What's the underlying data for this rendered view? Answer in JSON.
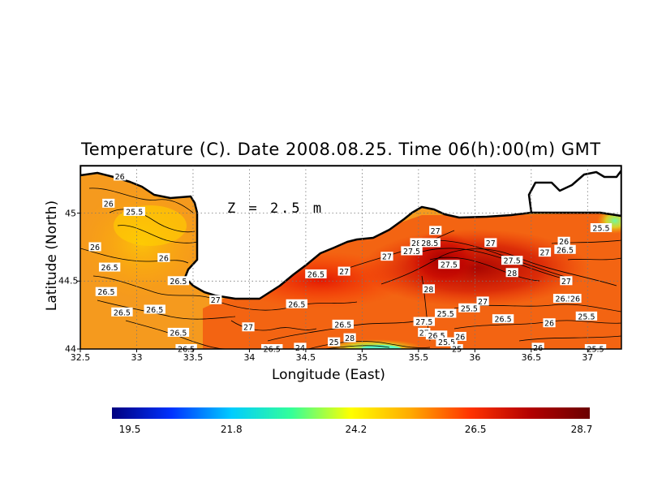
{
  "title": "Temperature (C). Date 2008.08.25. Time 06(h):00(m) GMT",
  "depth_label": "Z = 2.5 m",
  "xlabel": "Longitude (East)",
  "ylabel": "Latitude (North)",
  "x_ticks": [
    "32.5",
    "33",
    "33.5",
    "34",
    "34.5",
    "35",
    "35.5",
    "36",
    "36.5",
    "37"
  ],
  "y_ticks": [
    "44",
    "44.5",
    "45"
  ],
  "colorbar": {
    "ticks": [
      "19.5",
      "21.8",
      "24.2",
      "26.5",
      "28.7"
    ],
    "min": 19.5,
    "max": 28.7
  },
  "colors": {
    "cb_stops": [
      "#00007f",
      "#0033ff",
      "#00ccff",
      "#33ff99",
      "#ffff00",
      "#ffaa00",
      "#ff3300",
      "#b30000",
      "#6b0000"
    ],
    "land": "#ffffff",
    "coast": "#000000"
  },
  "chart_data": {
    "type": "heatmap",
    "title": "Temperature (C). Date 2008.08.25. Time 06(h):00(m) GMT",
    "xlabel": "Longitude (East)",
    "ylabel": "Latitude (North)",
    "xlim": [
      32.5,
      37.3
    ],
    "ylim": [
      44.0,
      45.35
    ],
    "colorbar_range": [
      19.5,
      28.7
    ],
    "contour_labels": [
      {
        "lon": 32.85,
        "lat": 45.27,
        "value": "26"
      },
      {
        "lon": 32.75,
        "lat": 45.07,
        "value": "26"
      },
      {
        "lon": 32.98,
        "lat": 45.01,
        "value": "25.5"
      },
      {
        "lon": 32.63,
        "lat": 44.75,
        "value": "26"
      },
      {
        "lon": 32.76,
        "lat": 44.6,
        "value": "26.5"
      },
      {
        "lon": 33.24,
        "lat": 44.67,
        "value": "26"
      },
      {
        "lon": 32.73,
        "lat": 44.42,
        "value": "26.5"
      },
      {
        "lon": 32.87,
        "lat": 44.27,
        "value": "26.5"
      },
      {
        "lon": 33.16,
        "lat": 44.29,
        "value": "26.5"
      },
      {
        "lon": 33.37,
        "lat": 44.5,
        "value": "26.5"
      },
      {
        "lon": 33.37,
        "lat": 44.12,
        "value": "26.5"
      },
      {
        "lon": 33.44,
        "lat": 44.0,
        "value": "26.5"
      },
      {
        "lon": 33.7,
        "lat": 44.36,
        "value": "27"
      },
      {
        "lon": 33.99,
        "lat": 44.16,
        "value": "27"
      },
      {
        "lon": 34.2,
        "lat": 44.0,
        "value": "26.5"
      },
      {
        "lon": 34.42,
        "lat": 44.33,
        "value": "26.5"
      },
      {
        "lon": 34.59,
        "lat": 44.55,
        "value": "26.5"
      },
      {
        "lon": 34.84,
        "lat": 44.57,
        "value": "27"
      },
      {
        "lon": 34.45,
        "lat": 44.01,
        "value": "24"
      },
      {
        "lon": 34.83,
        "lat": 44.18,
        "value": "26.5"
      },
      {
        "lon": 34.75,
        "lat": 44.05,
        "value": "25"
      },
      {
        "lon": 34.89,
        "lat": 44.08,
        "value": "28"
      },
      {
        "lon": 35.22,
        "lat": 44.68,
        "value": "27"
      },
      {
        "lon": 35.44,
        "lat": 44.72,
        "value": "27.5"
      },
      {
        "lon": 35.48,
        "lat": 44.78,
        "value": "28"
      },
      {
        "lon": 35.6,
        "lat": 44.78,
        "value": "28.5"
      },
      {
        "lon": 35.65,
        "lat": 44.87,
        "value": "27"
      },
      {
        "lon": 35.77,
        "lat": 44.62,
        "value": "27.5"
      },
      {
        "lon": 35.59,
        "lat": 44.44,
        "value": "28"
      },
      {
        "lon": 35.55,
        "lat": 44.2,
        "value": "27.5"
      },
      {
        "lon": 35.55,
        "lat": 44.12,
        "value": "27"
      },
      {
        "lon": 35.66,
        "lat": 44.1,
        "value": "26.5"
      },
      {
        "lon": 35.75,
        "lat": 44.05,
        "value": "25.5"
      },
      {
        "lon": 35.87,
        "lat": 44.09,
        "value": "26"
      },
      {
        "lon": 35.84,
        "lat": 44.0,
        "value": "25"
      },
      {
        "lon": 35.74,
        "lat": 44.26,
        "value": "25.5"
      },
      {
        "lon": 35.95,
        "lat": 44.3,
        "value": "25.5"
      },
      {
        "lon": 36.07,
        "lat": 44.35,
        "value": "27"
      },
      {
        "lon": 36.14,
        "lat": 44.78,
        "value": "27"
      },
      {
        "lon": 36.33,
        "lat": 44.65,
        "value": "27.5"
      },
      {
        "lon": 36.33,
        "lat": 44.56,
        "value": "28"
      },
      {
        "lon": 36.25,
        "lat": 44.22,
        "value": "26.5"
      },
      {
        "lon": 36.62,
        "lat": 44.71,
        "value": "27"
      },
      {
        "lon": 36.79,
        "lat": 44.79,
        "value": "26"
      },
      {
        "lon": 36.8,
        "lat": 44.73,
        "value": "26.5"
      },
      {
        "lon": 37.12,
        "lat": 44.89,
        "value": "25.5"
      },
      {
        "lon": 36.81,
        "lat": 44.5,
        "value": "27"
      },
      {
        "lon": 36.79,
        "lat": 44.37,
        "value": "26.5"
      },
      {
        "lon": 36.89,
        "lat": 44.37,
        "value": "26"
      },
      {
        "lon": 36.66,
        "lat": 44.19,
        "value": "26"
      },
      {
        "lon": 36.99,
        "lat": 44.24,
        "value": "25.5"
      },
      {
        "lon": 36.56,
        "lat": 44.01,
        "value": "26"
      },
      {
        "lon": 37.07,
        "lat": 44.0,
        "value": "25.5"
      }
    ]
  }
}
